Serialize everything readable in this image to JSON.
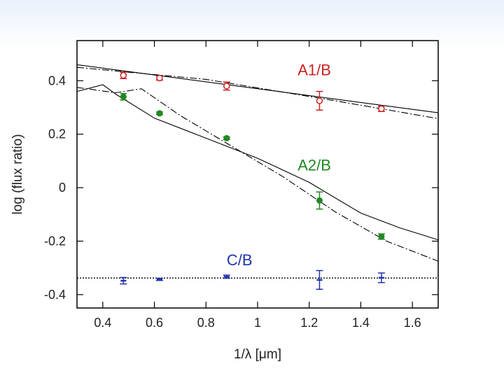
{
  "chart_data": {
    "type": "scatter",
    "title": "",
    "xlabel": "1/λ [μm]",
    "ylabel": "log (flux ratio)",
    "xlim": [
      0.3,
      1.7
    ],
    "ylim": [
      -0.45,
      0.55
    ],
    "xticks": [
      0.4,
      0.6,
      0.8,
      1,
      1.2,
      1.4,
      1.6
    ],
    "xtick_labels": [
      "0.4",
      "0.6",
      "0.8",
      "1",
      "1.2",
      "1.4",
      "1.6"
    ],
    "yticks": [
      -0.4,
      -0.2,
      0,
      0.2,
      0.4
    ],
    "ytick_labels": [
      "-0.4",
      "-0.2",
      "0",
      "0.2",
      "0.4"
    ],
    "grid": false,
    "series": [
      {
        "name": "A1/B",
        "color": "#cc2222",
        "marker": "open-circle",
        "label_at": [
          1.22,
          0.42
        ],
        "points": [
          {
            "x": 0.48,
            "y": 0.42,
            "err": 0.012
          },
          {
            "x": 0.62,
            "y": 0.41,
            "err": 0.008
          },
          {
            "x": 0.88,
            "y": 0.38,
            "err": 0.015
          },
          {
            "x": 1.24,
            "y": 0.325,
            "err": 0.035
          },
          {
            "x": 1.48,
            "y": 0.295,
            "err": 0.01
          }
        ]
      },
      {
        "name": "A2/B",
        "color": "#228822",
        "marker": "filled-circle",
        "label_at": [
          1.22,
          0.065
        ],
        "points": [
          {
            "x": 0.48,
            "y": 0.34,
            "err": 0.012
          },
          {
            "x": 0.62,
            "y": 0.278,
            "err": 0.005
          },
          {
            "x": 0.88,
            "y": 0.185,
            "err": 0.005
          },
          {
            "x": 1.24,
            "y": -0.048,
            "err": 0.032
          },
          {
            "x": 1.48,
            "y": -0.183,
            "err": 0.01
          }
        ]
      },
      {
        "name": "C/B",
        "color": "#2233aa",
        "marker": "dash",
        "label_at": [
          0.93,
          -0.29
        ],
        "points": [
          {
            "x": 0.48,
            "y": -0.348,
            "err": 0.012
          },
          {
            "x": 0.62,
            "y": -0.343,
            "err": 0.004
          },
          {
            "x": 0.88,
            "y": -0.333,
            "err": 0.006
          },
          {
            "x": 1.24,
            "y": -0.345,
            "err": 0.035
          },
          {
            "x": 1.48,
            "y": -0.337,
            "err": 0.018
          }
        ]
      }
    ],
    "model_curves": [
      {
        "style": "solid",
        "points": [
          [
            0.3,
            0.46
          ],
          [
            1.7,
            0.28
          ]
        ]
      },
      {
        "style": "dashdot",
        "points": [
          [
            0.3,
            0.45
          ],
          [
            0.8,
            0.405
          ],
          [
            1.3,
            0.325
          ],
          [
            1.7,
            0.258
          ]
        ]
      },
      {
        "style": "solid",
        "points": [
          [
            0.3,
            0.36
          ],
          [
            0.4,
            0.385
          ],
          [
            0.45,
            0.35
          ],
          [
            0.6,
            0.26
          ],
          [
            0.8,
            0.185
          ],
          [
            1.0,
            0.11
          ],
          [
            1.2,
            0.02
          ],
          [
            1.4,
            -0.095
          ],
          [
            1.55,
            -0.15
          ],
          [
            1.7,
            -0.195
          ]
        ]
      },
      {
        "style": "dashdot",
        "points": [
          [
            0.3,
            0.375
          ],
          [
            0.45,
            0.355
          ],
          [
            0.55,
            0.37
          ],
          [
            0.7,
            0.27
          ],
          [
            0.9,
            0.155
          ],
          [
            1.1,
            0.04
          ],
          [
            1.3,
            -0.09
          ],
          [
            1.5,
            -0.2
          ],
          [
            1.7,
            -0.275
          ]
        ]
      },
      {
        "style": "dotted",
        "points": [
          [
            0.3,
            -0.338
          ],
          [
            1.7,
            -0.338
          ]
        ]
      }
    ]
  }
}
